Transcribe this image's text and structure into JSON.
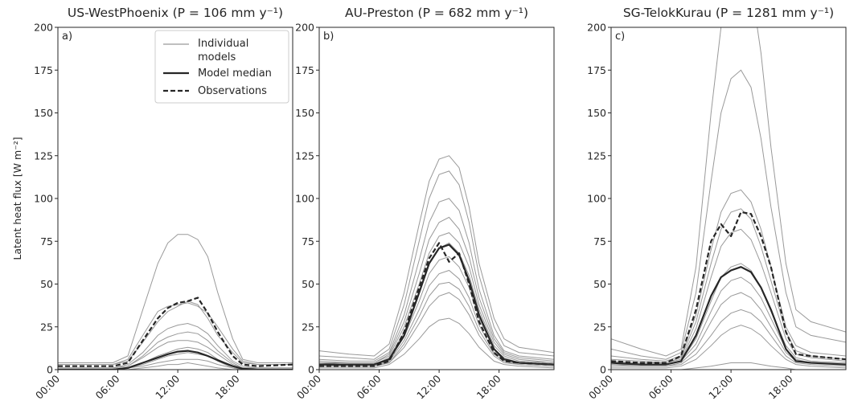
{
  "figure": {
    "ylabel": "Latent heat flux [W m⁻²]",
    "legend": {
      "placement": "top-right of first panel",
      "entries": [
        {
          "label_line1": "Individual",
          "label_line2": "models",
          "style": "thin-gray",
          "color": "#999999"
        },
        {
          "label_line1": "Model median",
          "label_line2": "",
          "style": "thick-solid",
          "color": "#262626"
        },
        {
          "label_line1": "Observations",
          "label_line2": "",
          "style": "thick-dashed",
          "color": "#262626"
        }
      ]
    }
  },
  "chart_data": [
    {
      "type": "line",
      "title": "US-WestPhoenix (P = 106 mm y⁻¹)",
      "panel_letter": "a)",
      "ylabel": "Latent heat flux [W m⁻²]",
      "xlabel": "",
      "x_unit": "hour of day",
      "xlim": [
        0,
        23.5
      ],
      "ylim": [
        0,
        200
      ],
      "xticks": [
        0,
        6,
        12,
        18
      ],
      "xtick_labels": [
        "00:00",
        "06:00",
        "12:00",
        "18:00"
      ],
      "yticks": [
        0,
        25,
        50,
        75,
        100,
        125,
        150,
        175,
        200
      ],
      "ytick_labels": [
        "0",
        "25",
        "50",
        "75",
        "100",
        "125",
        "150",
        "175",
        "200"
      ],
      "grid": false,
      "x": [
        0,
        3,
        5.5,
        7,
        8.5,
        10,
        11,
        12,
        13,
        14,
        15,
        16,
        17.5,
        18.5,
        20,
        23.5
      ],
      "individual_models": [
        [
          4,
          4,
          4,
          8,
          35,
          62,
          74,
          79,
          79,
          76,
          66,
          45,
          18,
          6,
          4,
          4
        ],
        [
          3,
          3,
          3,
          6,
          20,
          34,
          37,
          38,
          39,
          37,
          33,
          25,
          12,
          5,
          3,
          3
        ],
        [
          3,
          3,
          3,
          5,
          16,
          28,
          34,
          37,
          40,
          38,
          30,
          20,
          10,
          4,
          3,
          3
        ],
        [
          1,
          1,
          1,
          3,
          10,
          20,
          24,
          26,
          27,
          25,
          21,
          14,
          5,
          2,
          1,
          1
        ],
        [
          1,
          1,
          1,
          2,
          8,
          16,
          19,
          21,
          22,
          21,
          17,
          11,
          4,
          1,
          1,
          1
        ],
        [
          1,
          1,
          1,
          2,
          7,
          13,
          16,
          17,
          17,
          16,
          13,
          9,
          3,
          1,
          1,
          1
        ],
        [
          0,
          0,
          0,
          1,
          4,
          8,
          10,
          12,
          13,
          12,
          10,
          6,
          2,
          0,
          0,
          0
        ],
        [
          0,
          0,
          0,
          1,
          3,
          6,
          8,
          9,
          10,
          9,
          8,
          5,
          1,
          0,
          0,
          0
        ],
        [
          0,
          0,
          0,
          1,
          2,
          4,
          5,
          6,
          6,
          6,
          5,
          3,
          1,
          0,
          0,
          0
        ],
        [
          0,
          0,
          0,
          0,
          1,
          2,
          3,
          3,
          4,
          3,
          2,
          1,
          0,
          0,
          0,
          0
        ]
      ],
      "model_median": [
        0,
        0,
        0,
        1,
        4,
        7,
        9,
        10.5,
        11,
        10,
        8,
        5.5,
        2,
        0.5,
        0,
        0
      ],
      "observations": [
        2,
        2,
        2,
        4,
        17,
        30,
        36,
        39,
        40,
        42,
        33,
        22,
        8,
        3,
        2,
        3
      ]
    },
    {
      "type": "line",
      "title": "AU-Preston (P = 682 mm y⁻¹)",
      "panel_letter": "b)",
      "xlabel": "",
      "x_unit": "hour of day",
      "xlim": [
        0,
        23.5
      ],
      "ylim": [
        0,
        200
      ],
      "xticks": [
        0,
        6,
        12,
        18
      ],
      "xtick_labels": [
        "00:00",
        "06:00",
        "12:00",
        "18:00"
      ],
      "yticks": [
        0,
        25,
        50,
        75,
        100,
        125,
        150,
        175,
        200
      ],
      "ytick_labels": [
        "0",
        "25",
        "50",
        "75",
        "100",
        "125",
        "150",
        "175",
        "200"
      ],
      "grid": false,
      "x": [
        0,
        3,
        5.5,
        7,
        8.5,
        10,
        11,
        12,
        13,
        14,
        15,
        16,
        17.5,
        18.5,
        20,
        23.5
      ],
      "individual_models": [
        [
          11,
          9,
          8,
          15,
          45,
          85,
          110,
          123,
          125,
          118,
          95,
          62,
          30,
          18,
          13,
          10
        ],
        [
          8,
          7,
          6,
          12,
          38,
          75,
          100,
          114,
          116,
          108,
          86,
          55,
          25,
          14,
          10,
          8
        ],
        [
          6,
          5,
          5,
          10,
          32,
          64,
          86,
          98,
          100,
          93,
          74,
          47,
          20,
          11,
          8,
          6
        ],
        [
          5,
          4,
          4,
          9,
          28,
          56,
          76,
          86,
          89,
          82,
          66,
          42,
          18,
          10,
          7,
          5
        ],
        [
          4,
          4,
          4,
          8,
          25,
          50,
          68,
          78,
          80,
          74,
          60,
          38,
          16,
          9,
          6,
          4
        ],
        [
          4,
          3,
          3,
          7,
          22,
          45,
          62,
          71,
          74,
          68,
          55,
          35,
          14,
          8,
          5,
          4
        ],
        [
          3,
          3,
          3,
          6,
          19,
          40,
          56,
          64,
          66,
          60,
          48,
          30,
          12,
          7,
          4,
          3
        ],
        [
          3,
          2,
          2,
          5,
          17,
          35,
          49,
          56,
          58,
          53,
          42,
          26,
          10,
          6,
          4,
          3
        ],
        [
          2,
          2,
          2,
          4,
          15,
          31,
          43,
          50,
          51,
          47,
          37,
          23,
          9,
          5,
          3,
          2
        ],
        [
          2,
          2,
          2,
          4,
          13,
          27,
          37,
          43,
          45,
          41,
          32,
          20,
          8,
          4,
          3,
          2
        ],
        [
          1,
          1,
          1,
          3,
          9,
          18,
          25,
          29,
          30,
          27,
          21,
          13,
          5,
          3,
          2,
          1
        ]
      ],
      "model_median": [
        3,
        3,
        3,
        6,
        20,
        45,
        62,
        71,
        73,
        67,
        52,
        32,
        12,
        6,
        4,
        3
      ],
      "observations": [
        2,
        2,
        2,
        5,
        22,
        48,
        65,
        74,
        63,
        68,
        50,
        28,
        10,
        5,
        4,
        3
      ]
    },
    {
      "type": "line",
      "title": "SG-TelokKurau (P = 1281 mm y⁻¹)",
      "panel_letter": "c)",
      "xlabel": "",
      "x_unit": "hour of day",
      "xlim": [
        0,
        23.5
      ],
      "ylim": [
        0,
        200
      ],
      "xticks": [
        0,
        6,
        12,
        18
      ],
      "xtick_labels": [
        "00:00",
        "06:00",
        "12:00",
        "18:00"
      ],
      "yticks": [
        0,
        25,
        50,
        75,
        100,
        125,
        150,
        175,
        200
      ],
      "ytick_labels": [
        "0",
        "25",
        "50",
        "75",
        "100",
        "125",
        "150",
        "175",
        "200"
      ],
      "grid": false,
      "x": [
        0,
        3,
        5.5,
        7,
        8.5,
        10,
        11,
        12,
        13,
        14,
        15,
        16,
        17.5,
        18.5,
        20,
        23.5
      ],
      "individual_models": [
        [
          18,
          12,
          8,
          12,
          60,
          150,
          200,
          230,
          240,
          225,
          185,
          130,
          62,
          35,
          28,
          22
        ],
        [
          12,
          8,
          6,
          10,
          45,
          110,
          150,
          170,
          175,
          165,
          135,
          95,
          45,
          25,
          20,
          16
        ],
        [
          8,
          6,
          5,
          8,
          32,
          70,
          92,
          103,
          105,
          98,
          82,
          60,
          25,
          14,
          10,
          8
        ],
        [
          6,
          5,
          4,
          7,
          28,
          62,
          82,
          92,
          94,
          88,
          72,
          52,
          22,
          11,
          8,
          6
        ],
        [
          5,
          4,
          4,
          6,
          24,
          54,
          72,
          80,
          82,
          76,
          62,
          45,
          18,
          9,
          7,
          5
        ],
        [
          4,
          3,
          3,
          5,
          18,
          40,
          54,
          60,
          62,
          58,
          48,
          34,
          14,
          7,
          5,
          4
        ],
        [
          3,
          3,
          3,
          5,
          15,
          34,
          46,
          52,
          54,
          50,
          42,
          30,
          12,
          6,
          4,
          3
        ],
        [
          3,
          2,
          2,
          4,
          12,
          28,
          38,
          43,
          45,
          42,
          35,
          25,
          10,
          5,
          4,
          3
        ],
        [
          2,
          2,
          2,
          3,
          9,
          20,
          28,
          33,
          35,
          33,
          28,
          20,
          8,
          4,
          3,
          2
        ],
        [
          1,
          1,
          1,
          2,
          6,
          14,
          20,
          24,
          26,
          24,
          20,
          14,
          6,
          3,
          2,
          1
        ],
        [
          0,
          0,
          0,
          0,
          1,
          2,
          3,
          4,
          4,
          4,
          3,
          2,
          1,
          0,
          0,
          0
        ]
      ],
      "model_median": [
        4,
        3,
        3,
        5,
        20,
        43,
        54,
        58,
        60,
        57,
        48,
        35,
        12,
        5,
        4,
        3
      ],
      "observations": [
        5,
        4,
        4,
        8,
        35,
        75,
        85,
        78,
        92,
        91,
        78,
        60,
        22,
        9,
        8,
        6
      ]
    }
  ]
}
